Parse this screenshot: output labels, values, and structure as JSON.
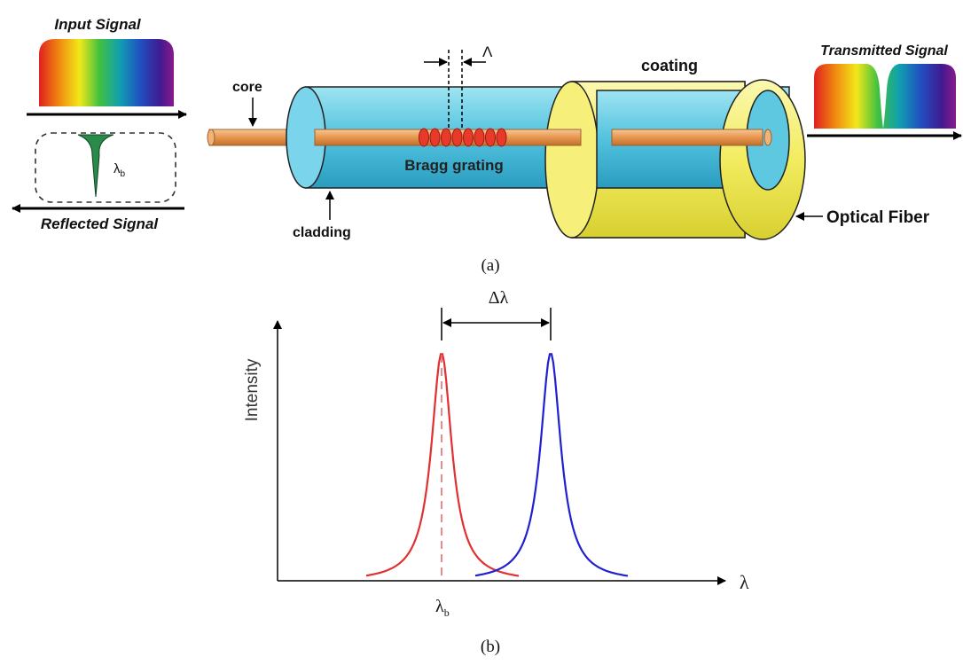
{
  "panel_a": {
    "input_signal": "Input Signal",
    "reflected_signal": "Reflected Signal",
    "reflected_lambda": "λ",
    "reflected_lambda_sub": "b",
    "transmitted_signal": "Transmitted Signal",
    "core_label": "core",
    "cladding_label": "cladding",
    "coating_label": "coating",
    "grating_label": "Bragg grating",
    "period_label": "Λ",
    "fiber_label": "Optical Fiber",
    "caption": "(a)"
  },
  "panel_b": {
    "ylabel": "Intensity",
    "xlabel": "λ",
    "shift_label": "Δλ",
    "lambda_b": "λ",
    "lambda_b_sub": "b",
    "caption": "(b)"
  },
  "colors": {
    "core": "#e8a060",
    "cladding": "#5ec8e0",
    "coating": "#f6f07a",
    "grating": "#e83a2a",
    "reflected_fill": "#2a8a4a",
    "red_peak": "#e03030",
    "blue_peak": "#2020d0"
  }
}
